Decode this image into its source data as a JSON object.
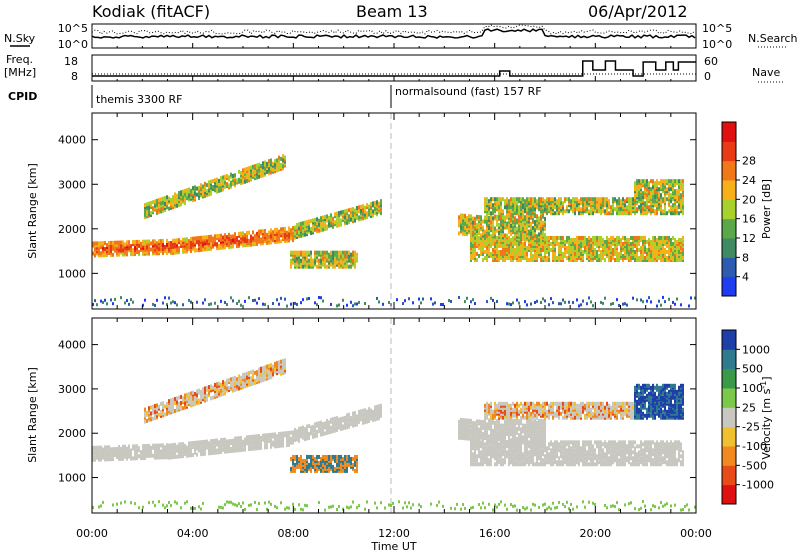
{
  "header": {
    "station": "Kodiak (fitACF)",
    "beam": "Beam 13",
    "date": "06/Apr/2012"
  },
  "noise_panel": {
    "left_label": "N.Sky",
    "right_label": "N.Search",
    "left_ticks": [
      "10^5",
      "10^0"
    ],
    "right_ticks": [
      "10^5",
      "10^0"
    ]
  },
  "freq_panel": {
    "left_label_line1": "Freq.",
    "left_label_line2": "[MHz]",
    "right_label": "Nave",
    "left_ticks": [
      "18",
      "8"
    ],
    "right_ticks": [
      "60",
      "0"
    ]
  },
  "cpid": {
    "label": "CPID",
    "segments": [
      {
        "name": "themis 3300 RF",
        "start_hour": 0
      },
      {
        "name": "normalsound (fast) 157 RF",
        "start_hour": 12
      }
    ]
  },
  "chart_data": [
    {
      "type": "heatmap",
      "title": "",
      "ylabel": "Slant Range [km]",
      "xlabel": "",
      "xlim": [
        0,
        24
      ],
      "ylim": [
        200,
        4600
      ],
      "yticks": [
        1000,
        2000,
        3000,
        4000
      ],
      "colorbar": {
        "label": "Power [dB]",
        "ticks": [
          "4",
          "8",
          "12",
          "16",
          "20",
          "24",
          "28"
        ],
        "colors": [
          "#1f3df0",
          "#2c5bb0",
          "#3f8a60",
          "#5aa84a",
          "#a8d12e",
          "#f7b01a",
          "#f07818",
          "#e83a16",
          "#e01010"
        ]
      },
      "bands": [
        {
          "hours": [
            0,
            3
          ],
          "range": [
            1400,
            1700
          ],
          "level": "high"
        },
        {
          "hours": [
            3,
            8
          ],
          "range": [
            1450,
            1900
          ],
          "level": "high"
        },
        {
          "hours": [
            8,
            11
          ],
          "range": [
            1800,
            2500
          ],
          "level": "medium"
        },
        {
          "hours": [
            2,
            7.5
          ],
          "range": [
            2200,
            3500
          ],
          "level": "medium"
        },
        {
          "hours": [
            15,
            23
          ],
          "range": [
            1300,
            1800
          ],
          "level": "medium"
        },
        {
          "hours": [
            15,
            23
          ],
          "range": [
            2300,
            3200
          ],
          "level": "low"
        }
      ]
    },
    {
      "type": "heatmap",
      "title": "",
      "ylabel": "Slant Range [km]",
      "xlabel": "Time UT",
      "xlim": [
        0,
        24
      ],
      "ylim": [
        200,
        4600
      ],
      "yticks": [
        1000,
        2000,
        3000,
        4000
      ],
      "xticks": [
        "00:00",
        "04:00",
        "08:00",
        "12:00",
        "16:00",
        "20:00",
        "00:00"
      ],
      "colorbar": {
        "label": "Velocity [m s^-1]",
        "ticks": [
          "1000",
          "500",
          "100",
          "25",
          "-25",
          "-100",
          "-500",
          "-1000"
        ],
        "colors": [
          "#1e3fa8",
          "#2f7a8f",
          "#3a9a4a",
          "#7cc84a",
          "#c8c8c0",
          "#f0c030",
          "#f08a20",
          "#e84a18",
          "#e01010"
        ]
      }
    }
  ]
}
